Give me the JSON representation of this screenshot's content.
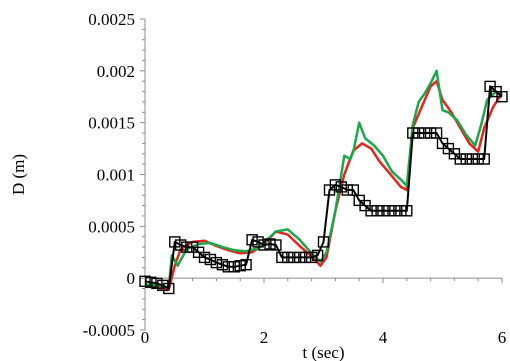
{
  "chart_data": {
    "type": "line",
    "title": "",
    "xlabel": "t (sec)",
    "ylabel": "D (m)",
    "xlim": [
      0,
      6
    ],
    "ylim": [
      -0.0005,
      0.0025
    ],
    "x_ticks": [
      0,
      2,
      4,
      6
    ],
    "x_tick_labels": [
      "0",
      "2",
      "4",
      "6"
    ],
    "y_ticks": [
      -0.0005,
      0,
      0.0005,
      0.001,
      0.0015,
      0.002,
      0.0025
    ],
    "y_tick_labels": [
      "-0.0005",
      "0",
      "0.0005",
      "0.001",
      "0.0015",
      "0.002",
      "0.0025"
    ],
    "grid": false,
    "legend": "none",
    "series": [
      {
        "color": "#000000",
        "marker": "square",
        "x": [
          0.0,
          0.1,
          0.2,
          0.3,
          0.4,
          0.5,
          0.6,
          0.7,
          0.8,
          0.9,
          1.0,
          1.1,
          1.2,
          1.3,
          1.4,
          1.5,
          1.6,
          1.7,
          1.8,
          1.9,
          2.0,
          2.1,
          2.2,
          2.3,
          2.4,
          2.5,
          2.6,
          2.7,
          2.8,
          2.9,
          3.0,
          3.1,
          3.2,
          3.3,
          3.4,
          3.5,
          3.6,
          3.7,
          3.8,
          3.9,
          4.0,
          4.1,
          4.2,
          4.3,
          4.4,
          4.5,
          4.6,
          4.7,
          4.8,
          4.9,
          5.0,
          5.1,
          5.2,
          5.3,
          5.4,
          5.5,
          5.6,
          5.7,
          5.8,
          5.9,
          6.0
        ],
        "y": [
          -3e-05,
          -4e-05,
          -5e-05,
          -7e-05,
          -0.0001,
          0.00035,
          0.00032,
          0.0003,
          0.0003,
          0.00025,
          0.0002,
          0.00018,
          0.00015,
          0.00013,
          0.00011,
          0.00011,
          0.00012,
          0.00013,
          0.00037,
          0.00035,
          0.00032,
          0.00033,
          0.00032,
          0.0002,
          0.0002,
          0.0002,
          0.0002,
          0.0002,
          0.0002,
          0.00022,
          0.00035,
          0.00085,
          0.0009,
          0.00088,
          0.00085,
          0.00085,
          0.00075,
          0.0007,
          0.00065,
          0.00065,
          0.00065,
          0.00065,
          0.00065,
          0.00065,
          0.00065,
          0.0014,
          0.0014,
          0.0014,
          0.0014,
          0.0014,
          0.0013,
          0.00125,
          0.0012,
          0.00115,
          0.00115,
          0.00115,
          0.00115,
          0.00115,
          0.00185,
          0.0018,
          0.00175
        ]
      },
      {
        "color": "#e8231c",
        "marker": "none",
        "x": [
          0.0,
          0.2,
          0.4,
          0.5,
          0.6,
          0.8,
          1.0,
          1.2,
          1.4,
          1.6,
          1.8,
          2.0,
          2.2,
          2.4,
          2.6,
          2.8,
          2.95,
          3.05,
          3.2,
          3.35,
          3.5,
          3.65,
          3.8,
          3.95,
          4.1,
          4.3,
          4.4,
          4.5,
          4.65,
          4.8,
          4.9,
          5.0,
          5.15,
          5.3,
          5.45,
          5.6,
          5.7,
          5.85,
          6.0
        ],
        "y": [
          -8e-05,
          -9e-05,
          -0.00011,
          0.00012,
          0.00028,
          0.00035,
          0.00036,
          0.00031,
          0.00027,
          0.00024,
          0.00025,
          0.00033,
          0.00045,
          0.00042,
          0.00031,
          0.00021,
          0.00012,
          0.0002,
          0.00065,
          0.001,
          0.00123,
          0.0013,
          0.00125,
          0.00112,
          0.00102,
          0.00088,
          0.00085,
          0.00145,
          0.00165,
          0.00185,
          0.0019,
          0.00172,
          0.0016,
          0.00145,
          0.0013,
          0.00122,
          0.00145,
          0.00165,
          0.00178
        ]
      },
      {
        "color": "#1aa84a",
        "marker": "none",
        "x": [
          0.0,
          0.2,
          0.4,
          0.45,
          0.55,
          0.7,
          0.9,
          1.1,
          1.3,
          1.5,
          1.7,
          1.9,
          2.05,
          2.2,
          2.4,
          2.6,
          2.8,
          2.95,
          3.05,
          3.2,
          3.35,
          3.45,
          3.5,
          3.6,
          3.7,
          3.85,
          4.0,
          4.15,
          4.3,
          4.4,
          4.5,
          4.6,
          4.7,
          4.8,
          4.9,
          5.0,
          5.1,
          5.25,
          5.4,
          5.55,
          5.65,
          5.75,
          5.9,
          6.0
        ],
        "y": [
          -6e-05,
          -7e-05,
          -9e-05,
          0.00022,
          0.00012,
          0.00028,
          0.00033,
          0.00034,
          0.0003,
          0.00027,
          0.00026,
          0.00029,
          0.00037,
          0.00045,
          0.00047,
          0.00037,
          0.00024,
          0.00016,
          0.00025,
          0.00065,
          0.00118,
          0.00115,
          0.00122,
          0.0015,
          0.00135,
          0.00128,
          0.00118,
          0.00103,
          0.00095,
          0.00089,
          0.00148,
          0.0017,
          0.00178,
          0.00188,
          0.002,
          0.00162,
          0.0016,
          0.00152,
          0.00138,
          0.00128,
          0.00148,
          0.00172,
          0.0018,
          0.00178
        ]
      }
    ]
  }
}
